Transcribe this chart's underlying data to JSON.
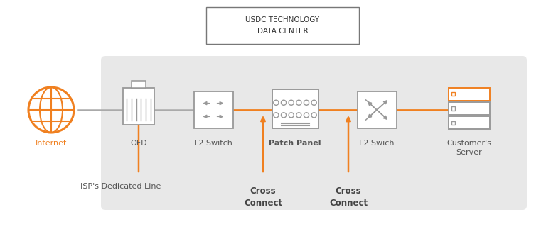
{
  "bg_color": "#ffffff",
  "orange": "#F08020",
  "gray_line": "#AAAAAA",
  "icon_gray": "#999999",
  "text_gray": "#555555",
  "cross_text_gray": "#444444",
  "light_gray_bg": "#E8E8E8",
  "datacenter_label": "USDC TECHNOLOGY\nDATA CENTER",
  "isp_label": "ISP's Dedicated Line",
  "components": [
    {
      "id": "internet",
      "label": "Internet",
      "orange_label": true,
      "bold_label": false
    },
    {
      "id": "ofd",
      "label": "OFD",
      "orange_label": false,
      "bold_label": false
    },
    {
      "id": "l2sw1",
      "label": "L2 Switch",
      "orange_label": false,
      "bold_label": false
    },
    {
      "id": "patch",
      "label": "Patch Panel",
      "orange_label": false,
      "bold_label": true
    },
    {
      "id": "l2sw2",
      "label": "L2 Swich",
      "orange_label": false,
      "bold_label": false
    },
    {
      "id": "server",
      "label": "Customer's\nServer",
      "orange_label": false,
      "bold_label": false
    }
  ]
}
